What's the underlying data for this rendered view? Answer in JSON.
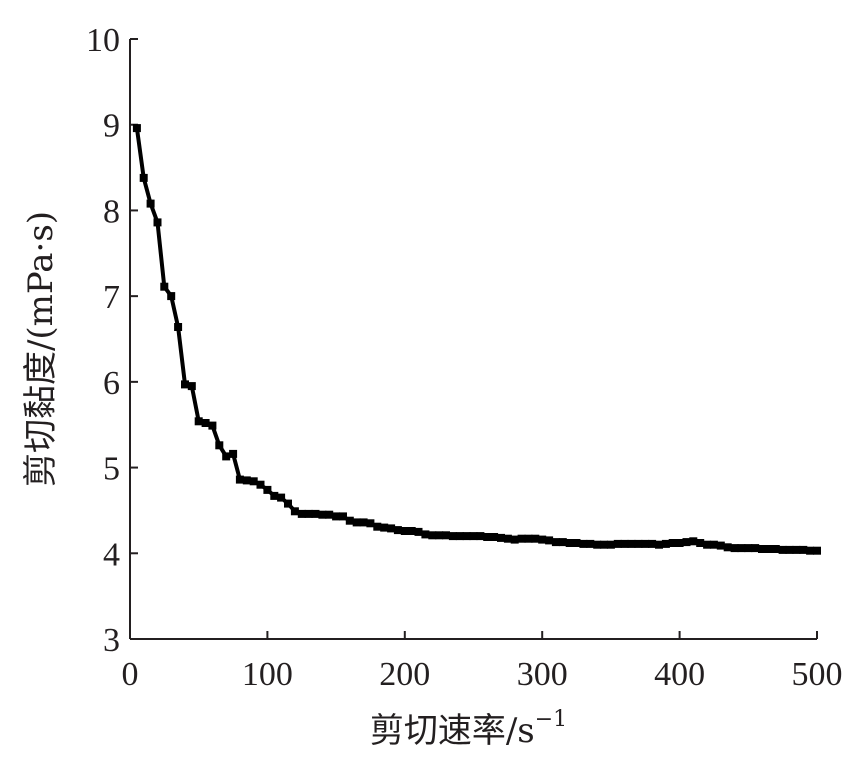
{
  "chart_data": {
    "type": "line",
    "title": "",
    "xlabel": "剪切速率/s",
    "xlabel_superscript": "−1",
    "ylabel": "剪切黏度/(mPa·s)",
    "xlim": [
      0,
      500
    ],
    "ylim": [
      3,
      10
    ],
    "xticks": [
      0,
      100,
      200,
      300,
      400,
      500
    ],
    "yticks": [
      3,
      4,
      5,
      6,
      7,
      8,
      9,
      10
    ],
    "grid": false,
    "legend": "none",
    "colors": {
      "axis": "#231f20",
      "series": "#000000"
    },
    "series": [
      {
        "marker": "square",
        "x": [
          5,
          10,
          15,
          20,
          25,
          30,
          35,
          40,
          45,
          50,
          55,
          60,
          65,
          70,
          75,
          80,
          85,
          90,
          95,
          100,
          105,
          110,
          115,
          120,
          125,
          130,
          135,
          140,
          145,
          150,
          155,
          160,
          165,
          170,
          175,
          180,
          185,
          190,
          195,
          200,
          205,
          210,
          215,
          220,
          225,
          230,
          235,
          240,
          245,
          250,
          255,
          260,
          265,
          270,
          275,
          280,
          285,
          290,
          295,
          300,
          305,
          310,
          315,
          320,
          325,
          330,
          335,
          340,
          345,
          350,
          355,
          360,
          365,
          370,
          375,
          380,
          385,
          390,
          395,
          400,
          405,
          410,
          415,
          420,
          425,
          430,
          435,
          440,
          445,
          450,
          455,
          460,
          465,
          470,
          475,
          480,
          485,
          490,
          495,
          500
        ],
        "y": [
          8.96,
          8.38,
          8.08,
          7.86,
          7.11,
          7.0,
          6.64,
          5.97,
          5.95,
          5.54,
          5.52,
          5.49,
          5.26,
          5.13,
          5.16,
          4.86,
          4.85,
          4.84,
          4.8,
          4.74,
          4.67,
          4.65,
          4.58,
          4.49,
          4.46,
          4.46,
          4.46,
          4.45,
          4.45,
          4.43,
          4.43,
          4.38,
          4.36,
          4.36,
          4.35,
          4.31,
          4.3,
          4.29,
          4.27,
          4.26,
          4.26,
          4.25,
          4.22,
          4.21,
          4.21,
          4.21,
          4.2,
          4.2,
          4.2,
          4.2,
          4.2,
          4.19,
          4.19,
          4.18,
          4.17,
          4.16,
          4.17,
          4.17,
          4.17,
          4.16,
          4.15,
          4.13,
          4.13,
          4.12,
          4.12,
          4.11,
          4.11,
          4.1,
          4.1,
          4.1,
          4.11,
          4.11,
          4.11,
          4.11,
          4.11,
          4.11,
          4.1,
          4.11,
          4.12,
          4.12,
          4.13,
          4.14,
          4.12,
          4.1,
          4.1,
          4.09,
          4.07,
          4.06,
          4.06,
          4.06,
          4.06,
          4.05,
          4.05,
          4.05,
          4.04,
          4.04,
          4.04,
          4.04,
          4.03,
          4.03
        ]
      }
    ]
  }
}
